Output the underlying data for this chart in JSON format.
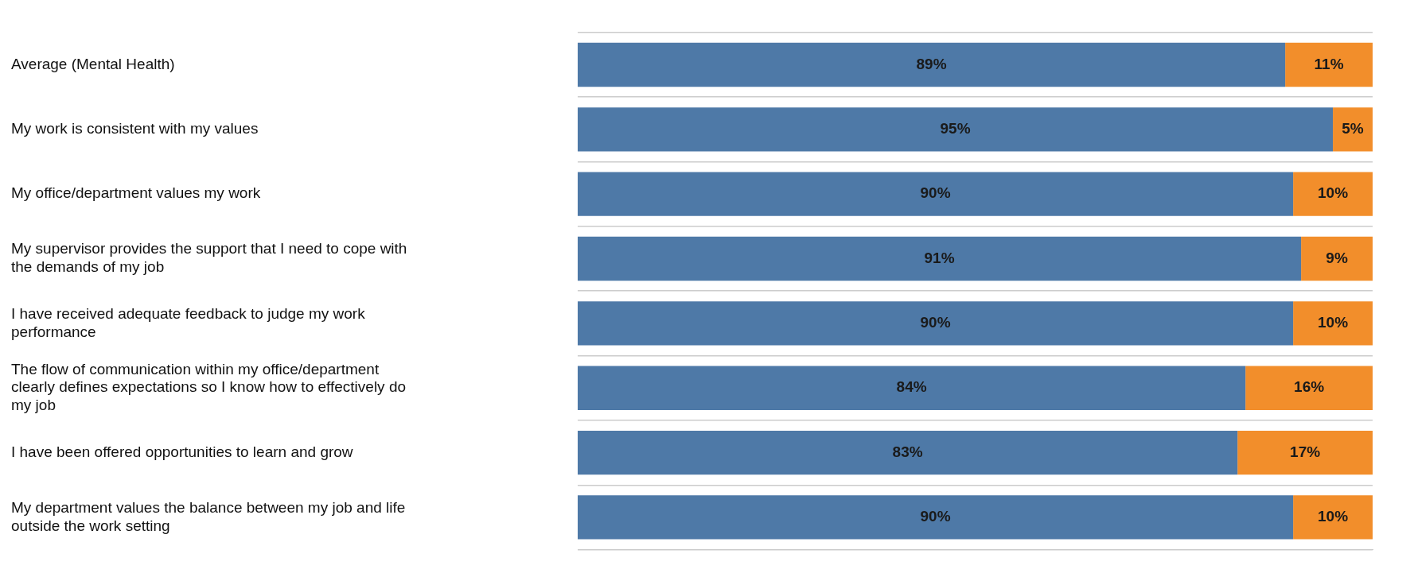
{
  "chart_data": {
    "type": "bar",
    "orientation": "horizontal",
    "stacked": true,
    "categories": [
      "Average (Mental Health)",
      "My work is consistent with my values",
      "My office/department values my work",
      "My supervisor provides the support that I need to cope with the demands of my job",
      "I have received adequate feedback to judge my work performance",
      "The flow of communication within my office/department clearly defines expectations so I know how to effectively do my job",
      "I have been offered opportunities to learn and grow",
      "My department values the balance between my job and life outside the work setting"
    ],
    "series": [
      {
        "color": "#4e79a7",
        "values": [
          89,
          95,
          90,
          91,
          90,
          84,
          83,
          90
        ],
        "value_labels": [
          "89%",
          "95%",
          "90%",
          "91%",
          "90%",
          "84%",
          "83%",
          "90%"
        ]
      },
      {
        "color": "#f28e2b",
        "values": [
          11,
          5,
          10,
          9,
          10,
          16,
          17,
          10
        ],
        "value_labels": [
          "11%",
          "5%",
          "10%",
          "9%",
          "10%",
          "16%",
          "17%",
          "10%"
        ]
      }
    ],
    "xlim": [
      0,
      100
    ],
    "grid": "y",
    "tick_labels": "y",
    "legend": false
  }
}
